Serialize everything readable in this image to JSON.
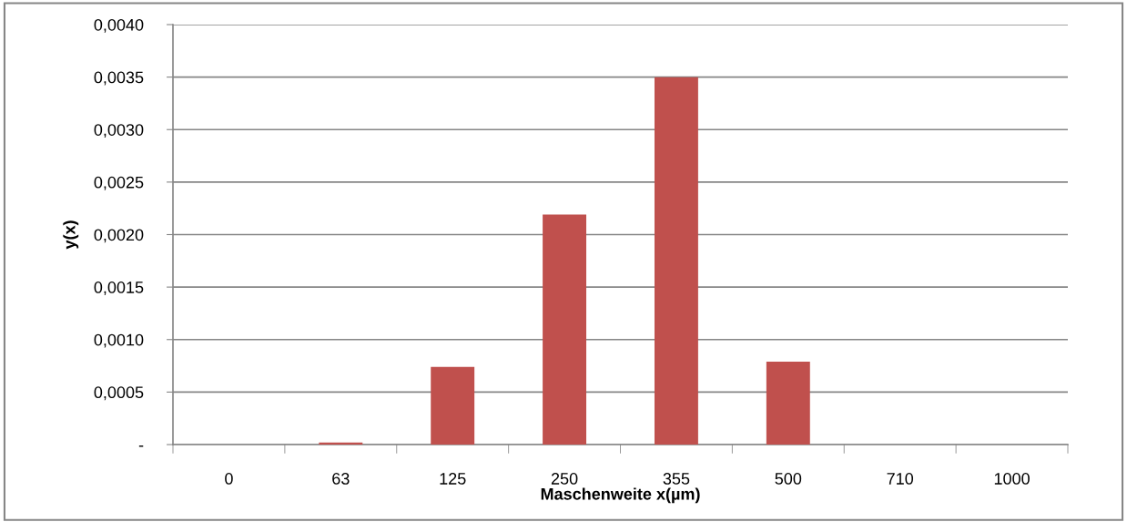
{
  "chart_data": {
    "type": "bar",
    "xlabel": "Maschenweite x(µm)",
    "ylabel": "y(x)",
    "categories": [
      "0",
      "63",
      "125",
      "250",
      "355",
      "500",
      "710",
      "1000"
    ],
    "values": [
      0,
      2e-05,
      0.00074,
      0.00219,
      0.0035,
      0.00079,
      0,
      0
    ],
    "color": "#c0504d",
    "ylim": [
      0,
      0.004
    ],
    "yticks": [
      {
        "value": 0,
        "label": "-"
      },
      {
        "value": 0.0005,
        "label": "0,0005"
      },
      {
        "value": 0.001,
        "label": "0,0010"
      },
      {
        "value": 0.0015,
        "label": "0,0015"
      },
      {
        "value": 0.002,
        "label": "0,0020"
      },
      {
        "value": 0.0025,
        "label": "0,0025"
      },
      {
        "value": 0.003,
        "label": "0,0030"
      },
      {
        "value": 0.0035,
        "label": "0,0035"
      },
      {
        "value": 0.004,
        "label": "0,0040"
      }
    ],
    "grid": "y",
    "legend": false
  }
}
